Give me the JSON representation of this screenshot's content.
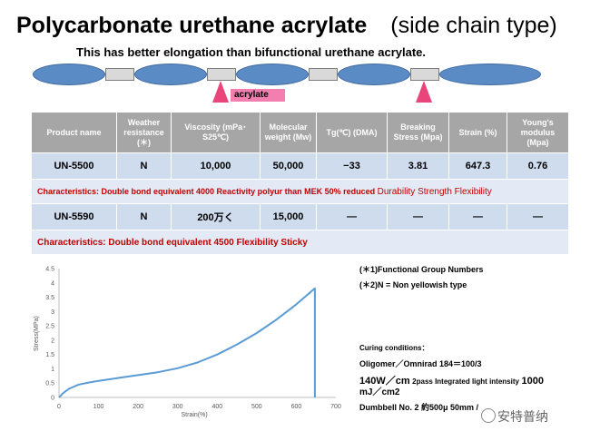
{
  "title": "Polycarbonate urethane acrylate",
  "title_paren": "(side chain type)",
  "subtitle": "This has better elongation than bifunctional urethane acrylate.",
  "diagram": {
    "tag": "acrylate",
    "ellipse_color": "#5b8bc4",
    "segment_color": "#d9d9d9",
    "triangle_color": "#e9457a",
    "tag_color": "#f27fb0"
  },
  "table": {
    "headers": [
      "Product name",
      "Weather resistance (＊)",
      "Viscosity (mPa･S25℃)",
      "Molecular weight (Mw)",
      "Tg(℃) (DMA)",
      "Breaking Stress (Mpa)",
      "Strain (%)",
      "Young's modulus (Mpa)"
    ],
    "rows": [
      {
        "cells": [
          "UN-5500",
          "N",
          "10,000",
          "50,000",
          "−33",
          "3.81",
          "647.3",
          "0.76"
        ],
        "characteristics_prefix": "Characteristics: Double bond equivalent 4000 Reactivity polyur than MEK 50% reduced",
        "characteristics_suffix": "Durability Strength   Flexibility"
      },
      {
        "cells": [
          "UN-5590",
          "N",
          "200万く",
          "15,000",
          "—",
          "—",
          "—",
          "—"
        ],
        "characteristics_prefix": "Characteristics: Double bond equivalent 4500 Flexibility   Sticky",
        "characteristics_suffix": ""
      }
    ]
  },
  "chart_data": {
    "type": "line",
    "xlabel": "Strain(%)",
    "ylabel": "Stress(MPa)",
    "xlim": [
      0,
      700
    ],
    "ylim": [
      0,
      4.5
    ],
    "xticks": [
      0,
      100,
      200,
      300,
      400,
      500,
      600,
      700
    ],
    "yticks": [
      0,
      0.5,
      1,
      1.5,
      2,
      2.5,
      3,
      3.5,
      4,
      4.5
    ],
    "grid": false,
    "series": [
      {
        "color": "#5b9bd5",
        "x": [
          0,
          10,
          25,
          50,
          75,
          100,
          150,
          200,
          250,
          300,
          350,
          400,
          450,
          500,
          550,
          600,
          647,
          647
        ],
        "y": [
          0,
          0.15,
          0.3,
          0.45,
          0.52,
          0.58,
          0.68,
          0.78,
          0.88,
          1.02,
          1.22,
          1.5,
          1.85,
          2.25,
          2.72,
          3.25,
          3.81,
          0
        ]
      }
    ]
  },
  "notes": {
    "n1": "(＊1)Functional Group Numbers",
    "n2": "(＊2)N = Non yellowish type",
    "cure_title": "Curing conditions：",
    "cure_line1": "Oligomer／Omnirad  184＝100/3",
    "cure_line2a": "140W／cm",
    "cure_line2b": "2pass  Integrated light intensity",
    "cure_line2c": "1000",
    "cure_line3": "mJ／cm2",
    "cure_line4": "Dumbbell No. 2  約500μ  50mm /"
  },
  "watermark": "安特普纳"
}
